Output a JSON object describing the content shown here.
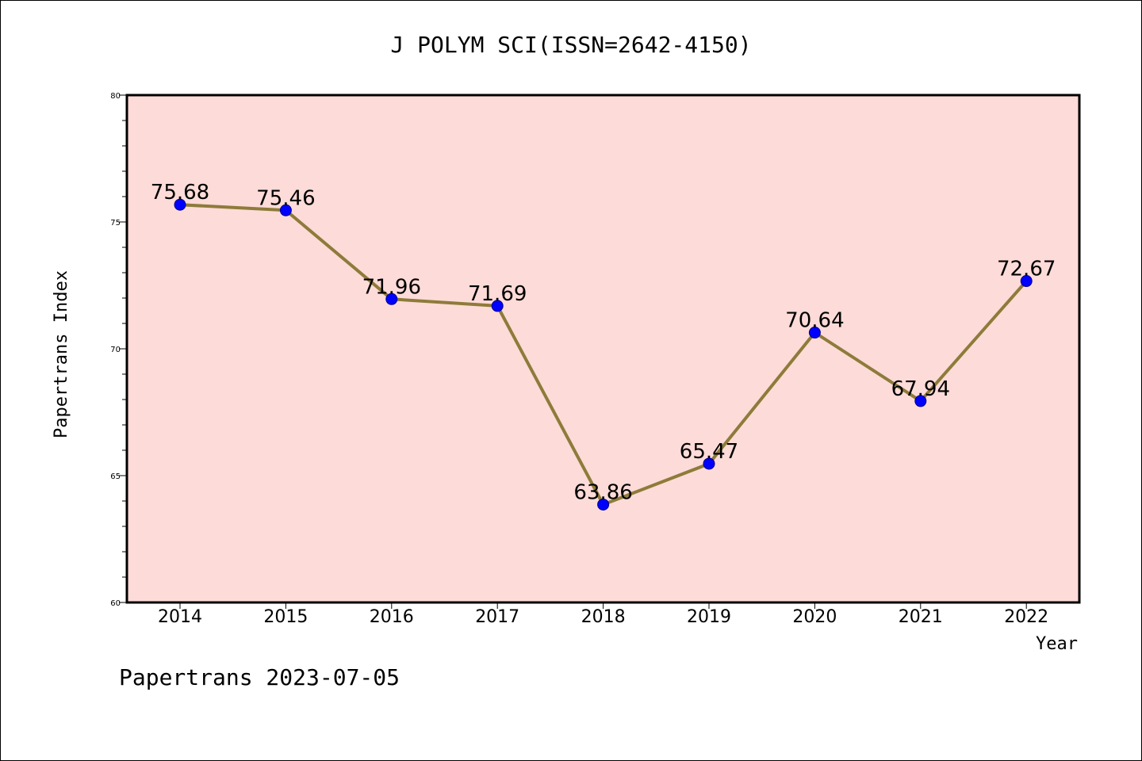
{
  "chart_data": {
    "type": "line",
    "title": "J POLYM SCI(ISSN=2642-4150)",
    "xlabel": "Year",
    "ylabel": "Papertrans Index",
    "categories": [
      "2014",
      "2015",
      "2016",
      "2017",
      "2018",
      "2019",
      "2020",
      "2021",
      "2022"
    ],
    "series": [
      {
        "values": [
          75.68,
          75.46,
          71.96,
          71.69,
          63.86,
          65.47,
          70.64,
          67.94,
          72.67
        ],
        "labels": [
          "75.68",
          "75.46",
          "71.96",
          "71.69",
          "63.86",
          "65.47",
          "70.64",
          "67.94",
          "72.67"
        ]
      }
    ],
    "ylim": [
      60,
      80
    ],
    "yticks": [
      "60",
      "65",
      "70",
      "75",
      "80"
    ],
    "grid": false,
    "legend": "none",
    "colors": {
      "plot_background": "#fddbd8",
      "line": "#8e7b3a",
      "marker": "#0000ff"
    }
  },
  "footer": {
    "text": "Papertrans 2023-07-05"
  }
}
